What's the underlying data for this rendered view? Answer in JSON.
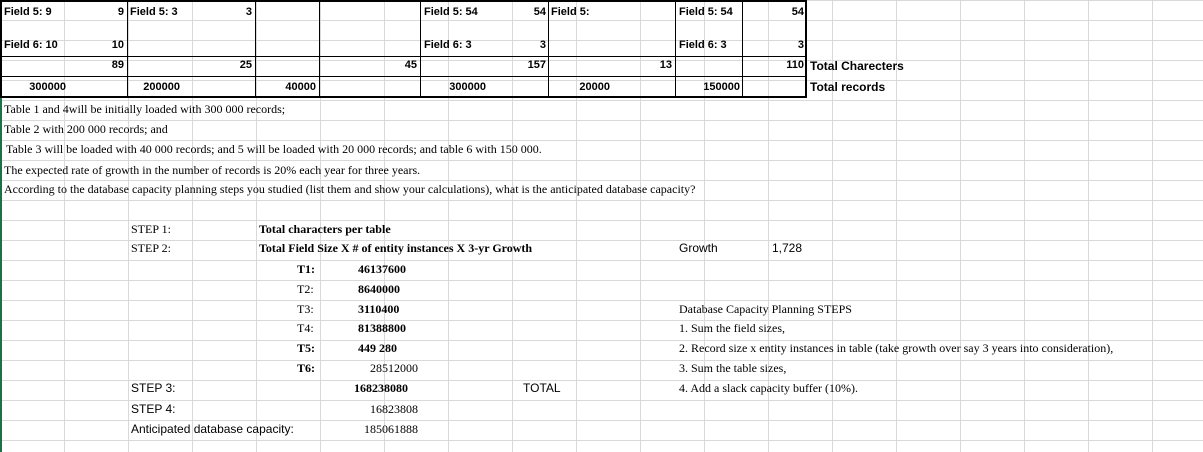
{
  "table": {
    "row1": {
      "c1": "Field 5: 9",
      "c2v": "9",
      "c2": "Field 5: 3",
      "c3v": "3",
      "c5": "Field 5: 54",
      "c6v": "54",
      "c6": "Field 5:",
      "c7": "Field 5: 54",
      "c8v": "54"
    },
    "row2": {
      "c1": "Field 6: 10",
      "c2v": "10",
      "c5": "Field 6: 3",
      "c6v": "3",
      "c7": "Field 6: 3",
      "c8v": "3"
    },
    "row3": {
      "c2v": "89",
      "c3v": "25",
      "c4v": "45",
      "c6v": "157",
      "c7v": "13",
      "c8v": "110",
      "label": "Total Charecters"
    },
    "row4": {
      "c1": "300000",
      "c2": "200000",
      "c3": "40000",
      "c5": "300000",
      "c6": "20000",
      "c7": "150000",
      "label": "Total records"
    }
  },
  "text": {
    "line1": "Table 1 and 4will be initially loaded with 300 000 records;",
    "line2": "Table 2 with 200 000 records; and",
    "line3": "Table 3 will be loaded with 40 000 records; and 5 will be loaded with 20 000 records; and table 6 with 150 000.",
    "line4": "The expected rate of growth in the number of records is 20% each year for three years.",
    "line5": "According to the database capacity planning steps you studied (list them and show your calculations), what is the anticipated database capacity?"
  },
  "steps": {
    "step1_label": "STEP 1:",
    "step1_desc": "Total characters per table",
    "step2_label": "STEP 2:",
    "step2_desc": "Total Field Size X # of entity instances X 3-yr Growth",
    "growth_label": "Growth",
    "growth_value": "1,728",
    "tables": [
      {
        "label": "T1:",
        "value": "46137600"
      },
      {
        "label": "T2:",
        "value": "8640000"
      },
      {
        "label": "T3:",
        "value": "3110400"
      },
      {
        "label": "T4:",
        "value": "81388800"
      },
      {
        "label": "T5:",
        "value": "449 280"
      },
      {
        "label": "T6:",
        "value": "28512000"
      }
    ],
    "step3_label": "STEP 3:",
    "step3_value": "168238080",
    "total_label": "TOTAL",
    "step4_label": "STEP 4:",
    "step4_value": "16823808",
    "capacity_label": "Anticipated database capacity:",
    "capacity_value": "185061888"
  },
  "planning": {
    "title": "Database Capacity Planning STEPS",
    "items": [
      "1.  Sum the field sizes,",
      "2.  Record size x entity instances in table (take growth over say 3 years into consideration),",
      "3.  Sum the table sizes,",
      "4.  Add a slack capacity buffer (10%)."
    ]
  }
}
